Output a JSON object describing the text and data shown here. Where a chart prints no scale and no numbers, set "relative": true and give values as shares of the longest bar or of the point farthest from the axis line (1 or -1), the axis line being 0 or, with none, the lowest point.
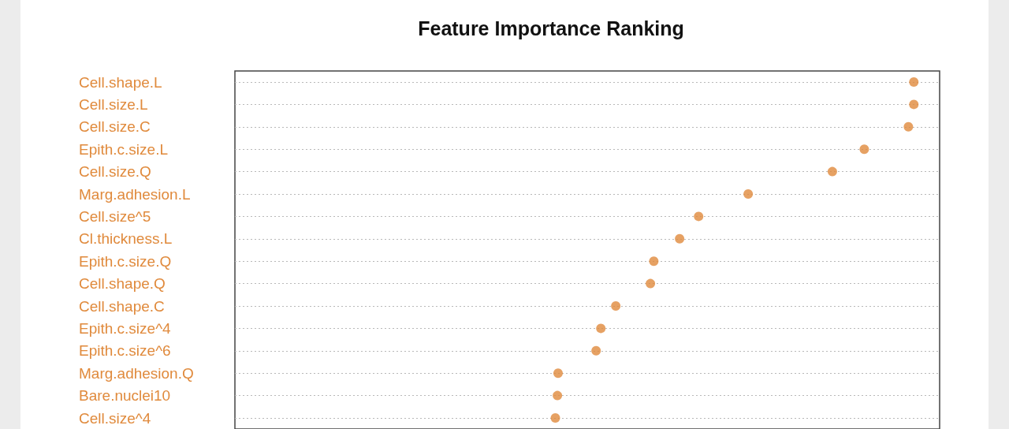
{
  "chart_data": {
    "type": "scatter",
    "title": "Feature Importance Ranking",
    "orientation": "horizontal",
    "relative": true,
    "color": "#e08a3c",
    "marker": "circle",
    "grid": "y",
    "categories": [
      "Cell.shape.L",
      "Cell.size.L",
      "Cell.size.C",
      "Epith.c.size.L",
      "Cell.size.Q",
      "Marg.adhesion.L",
      "Cell.size^5",
      "Cl.thickness.L",
      "Epith.c.size.Q",
      "Cell.shape.Q",
      "Cell.shape.C",
      "Epith.c.size^4",
      "Epith.c.size^6",
      "Marg.adhesion.Q",
      "Bare.nuclei10",
      "Cell.size^4"
    ],
    "values": [
      1.0,
      1.0,
      0.992,
      0.927,
      0.88,
      0.756,
      0.683,
      0.655,
      0.617,
      0.612,
      0.561,
      0.539,
      0.532,
      0.476,
      0.475,
      0.472
    ]
  }
}
